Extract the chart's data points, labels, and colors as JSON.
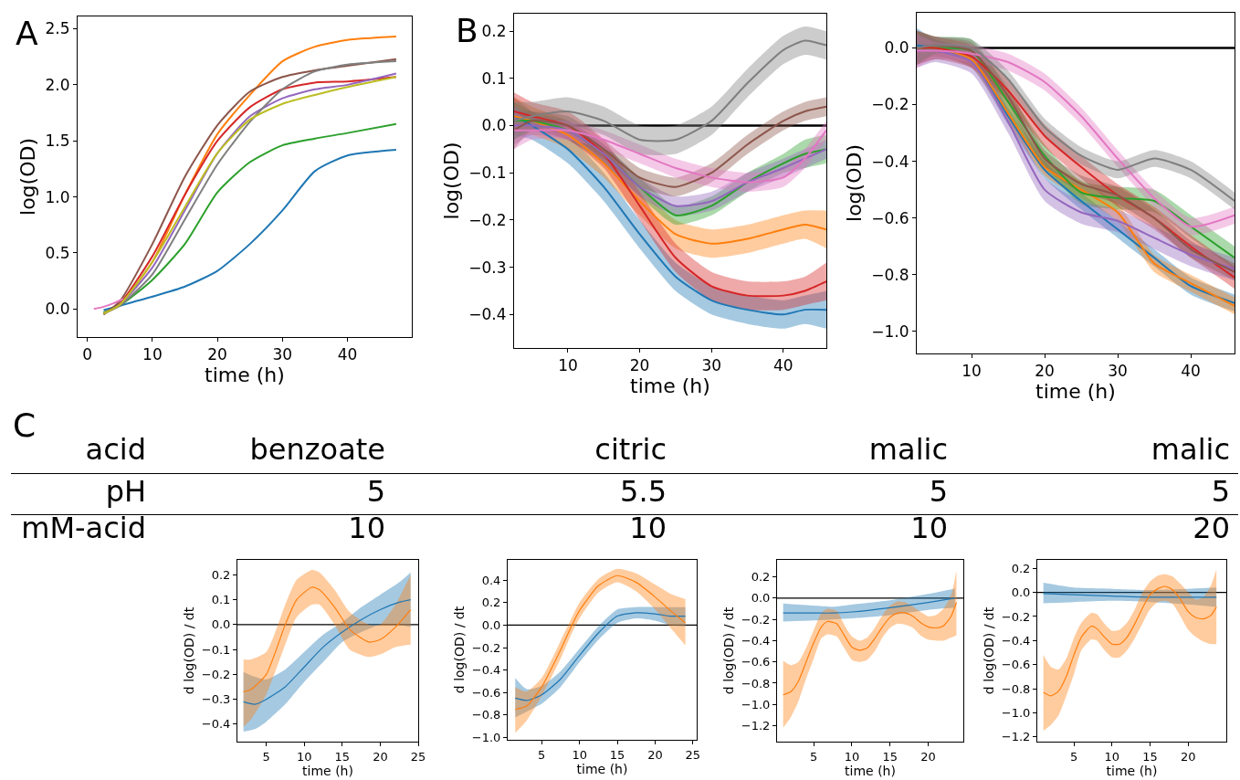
{
  "chart_data": [
    {
      "type": "line",
      "xlabel": "time (h)",
      "ylabel": "log(OD)",
      "annotations": [
        "A"
      ],
      "grid": false,
      "marker": "none",
      "line_style": "solid",
      "x": [
        2.5,
        5,
        10,
        15,
        20,
        25,
        30,
        35,
        40,
        47.5
      ],
      "xlim": [
        -1.5,
        49.9
      ],
      "xticks": [
        0,
        10,
        20,
        30,
        40
      ],
      "ylim": [
        -0.25,
        2.61
      ],
      "yticks": [
        {
          "value": 0,
          "label": "0.0"
        },
        {
          "value": 0.5,
          "label": "0.5"
        },
        {
          "value": 1,
          "label": "1.0"
        },
        {
          "value": 1.5,
          "label": "1.5"
        },
        {
          "value": 2,
          "label": "2.0"
        },
        {
          "value": 2.5,
          "label": "2.5"
        }
      ],
      "series": [
        {
          "color": "#1f77b4",
          "values": [
            -0.01,
            0.03,
            0.11,
            0.2,
            0.34,
            0.58,
            0.88,
            1.23,
            1.37,
            1.42
          ]
        },
        {
          "color": "#ff7f0e",
          "values": [
            -0.04,
            0.04,
            0.42,
            1.02,
            1.56,
            1.91,
            2.21,
            2.34,
            2.4,
            2.43
          ]
        },
        {
          "color": "#2ca02c",
          "values": [
            -0.03,
            0.03,
            0.26,
            0.58,
            1.04,
            1.31,
            1.46,
            1.52,
            1.57,
            1.65
          ]
        },
        {
          "color": "#d62728",
          "values": [
            -0.04,
            0.05,
            0.47,
            1.02,
            1.5,
            1.8,
            1.96,
            2.02,
            2.03,
            2.07
          ]
        },
        {
          "color": "#9467bd",
          "values": [
            -0.04,
            0.04,
            0.37,
            0.88,
            1.39,
            1.72,
            1.88,
            1.96,
            2.0,
            2.1
          ]
        },
        {
          "color": "#8c564b",
          "values": [
            -0.05,
            0.07,
            0.58,
            1.18,
            1.64,
            1.94,
            2.07,
            2.13,
            2.17,
            2.23
          ]
        },
        {
          "color": "#e377c2",
          "x": [
            1,
            2.5,
            4,
            5.5
          ],
          "values": [
            0.0,
            0.02,
            0.05,
            0.09
          ]
        },
        {
          "color": "#7f7f7f",
          "values": [
            -0.04,
            0.03,
            0.31,
            0.8,
            1.29,
            1.67,
            1.96,
            2.12,
            2.18,
            2.21
          ]
        },
        {
          "color": "#bcbd22",
          "values": [
            -0.04,
            0.04,
            0.42,
            0.91,
            1.39,
            1.69,
            1.83,
            1.91,
            1.98,
            2.07
          ]
        }
      ]
    },
    {
      "type": "line",
      "xlabel": "time (h)",
      "ylabel": "log(OD)",
      "annotations": [
        "B"
      ],
      "grid": false,
      "marker": "none",
      "line_style": "solid",
      "x": [
        2.5,
        5,
        10,
        15,
        20,
        25,
        30,
        35,
        40,
        43,
        46
      ],
      "xlim": [
        2.5,
        46
      ],
      "xticks": [
        10,
        20,
        30,
        40
      ],
      "ylim": [
        -0.471,
        0.237
      ],
      "yticks": [
        {
          "value": -0.4,
          "label": "−0.4"
        },
        {
          "value": -0.3,
          "label": "−0.3"
        },
        {
          "value": -0.2,
          "label": "−0.2"
        },
        {
          "value": -0.1,
          "label": "−0.1"
        },
        {
          "value": 0,
          "label": "0.0"
        },
        {
          "value": 0.1,
          "label": "0.1"
        },
        {
          "value": 0.2,
          "label": "0.2"
        }
      ],
      "ref_lines": [
        {
          "axis": "y",
          "value": 0,
          "color": "#000000"
        }
      ],
      "series": [
        {
          "color": "#1f77b4",
          "values": [
            0.02,
            0.0,
            -0.05,
            -0.13,
            -0.23,
            -0.32,
            -0.37,
            -0.39,
            -0.4,
            -0.39,
            -0.39
          ],
          "lower": [
            -0.02,
            -0.03,
            -0.08,
            -0.16,
            -0.26,
            -0.35,
            -0.4,
            -0.42,
            -0.43,
            -0.42,
            -0.43
          ],
          "upper": [
            0.06,
            0.03,
            -0.02,
            -0.1,
            -0.2,
            -0.29,
            -0.34,
            -0.36,
            -0.37,
            -0.36,
            -0.35
          ]
        },
        {
          "color": "#ff7f0e",
          "values": [
            0.02,
            0.01,
            -0.02,
            -0.08,
            -0.16,
            -0.23,
            -0.25,
            -0.24,
            -0.22,
            -0.21,
            -0.22
          ],
          "lower": [
            -0.02,
            -0.02,
            -0.05,
            -0.11,
            -0.19,
            -0.26,
            -0.28,
            -0.27,
            -0.25,
            -0.24,
            -0.26
          ],
          "upper": [
            0.06,
            0.04,
            0.01,
            -0.05,
            -0.13,
            -0.2,
            -0.22,
            -0.21,
            -0.19,
            -0.18,
            -0.18
          ]
        },
        {
          "color": "#2ca02c",
          "values": [
            0.01,
            0.01,
            -0.01,
            -0.06,
            -0.13,
            -0.19,
            -0.17,
            -0.12,
            -0.08,
            -0.06,
            -0.05
          ],
          "lower": [
            -0.03,
            -0.01,
            -0.03,
            -0.08,
            -0.15,
            -0.21,
            -0.19,
            -0.14,
            -0.1,
            -0.09,
            -0.08
          ],
          "upper": [
            0.05,
            0.03,
            0.01,
            -0.04,
            -0.11,
            -0.17,
            -0.15,
            -0.1,
            -0.06,
            -0.03,
            -0.02
          ]
        },
        {
          "color": "#d62728",
          "values": [
            0.03,
            0.02,
            0.0,
            -0.06,
            -0.17,
            -0.28,
            -0.34,
            -0.36,
            -0.36,
            -0.35,
            -0.33
          ],
          "lower": [
            -0.01,
            -0.01,
            -0.03,
            -0.09,
            -0.2,
            -0.31,
            -0.37,
            -0.39,
            -0.39,
            -0.38,
            -0.37
          ],
          "upper": [
            0.07,
            0.05,
            0.03,
            -0.03,
            -0.14,
            -0.25,
            -0.31,
            -0.33,
            -0.33,
            -0.32,
            -0.29
          ]
        },
        {
          "color": "#9467bd",
          "values": [
            0.0,
            0.0,
            -0.01,
            -0.06,
            -0.13,
            -0.17,
            -0.16,
            -0.12,
            -0.09,
            -0.07,
            -0.05
          ],
          "lower": [
            -0.04,
            -0.02,
            -0.03,
            -0.08,
            -0.15,
            -0.19,
            -0.18,
            -0.14,
            -0.11,
            -0.09,
            -0.07
          ],
          "upper": [
            0.04,
            0.02,
            0.01,
            -0.04,
            -0.11,
            -0.15,
            -0.14,
            -0.1,
            -0.07,
            -0.05,
            -0.03
          ]
        },
        {
          "color": "#8c564b",
          "values": [
            -0.01,
            0.01,
            0.0,
            -0.05,
            -0.11,
            -0.13,
            -0.1,
            -0.04,
            0.01,
            0.03,
            0.04
          ],
          "lower": [
            -0.05,
            -0.01,
            -0.02,
            -0.07,
            -0.13,
            -0.15,
            -0.12,
            -0.06,
            -0.01,
            0.01,
            0.02
          ],
          "upper": [
            0.03,
            0.03,
            0.02,
            -0.03,
            -0.09,
            -0.11,
            -0.08,
            -0.02,
            0.03,
            0.05,
            0.06
          ]
        },
        {
          "color": "#e377c2",
          "values": [
            -0.01,
            -0.01,
            -0.01,
            -0.03,
            -0.06,
            -0.09,
            -0.11,
            -0.12,
            -0.11,
            -0.07,
            -0.01
          ],
          "lower": [
            -0.05,
            -0.03,
            -0.03,
            -0.05,
            -0.08,
            -0.11,
            -0.13,
            -0.14,
            -0.13,
            -0.09,
            -0.03
          ],
          "upper": [
            0.03,
            0.01,
            0.01,
            -0.01,
            -0.04,
            -0.07,
            -0.09,
            -0.1,
            -0.09,
            -0.05,
            0.01
          ]
        },
        {
          "color": "#7f7f7f",
          "values": [
            0.01,
            0.02,
            0.03,
            0.01,
            -0.03,
            -0.03,
            0.01,
            0.09,
            0.16,
            0.18,
            0.17
          ],
          "lower": [
            -0.03,
            -0.01,
            0.0,
            -0.02,
            -0.06,
            -0.06,
            -0.02,
            0.06,
            0.13,
            0.15,
            0.14
          ],
          "upper": [
            0.05,
            0.05,
            0.06,
            0.04,
            0.0,
            0.0,
            0.04,
            0.12,
            0.19,
            0.21,
            0.2
          ]
        }
      ]
    },
    {
      "type": "line",
      "xlabel": "time (h)",
      "ylabel": "log(OD)",
      "grid": false,
      "marker": "none",
      "line_style": "solid",
      "x": [
        2.5,
        5,
        10,
        15,
        20,
        25,
        30,
        35,
        40,
        46
      ],
      "xlim": [
        2.5,
        46
      ],
      "xticks": [
        10,
        20,
        30,
        40
      ],
      "ylim": [
        -1.078,
        0.124
      ],
      "yticks": [
        {
          "value": -1,
          "label": "−1.0"
        },
        {
          "value": -0.8,
          "label": "−0.8"
        },
        {
          "value": -0.6,
          "label": "−0.6"
        },
        {
          "value": -0.4,
          "label": "−0.4"
        },
        {
          "value": -0.2,
          "label": "−0.2"
        },
        {
          "value": 0,
          "label": "0.0"
        }
      ],
      "ref_lines": [
        {
          "axis": "y",
          "value": 0,
          "color": "#000000"
        }
      ],
      "series": [
        {
          "color": "#1f77b4",
          "values": [
            0.01,
            0.0,
            -0.04,
            -0.24,
            -0.43,
            -0.54,
            -0.64,
            -0.74,
            -0.84,
            -0.9
          ],
          "lower": [
            -0.05,
            -0.03,
            -0.07,
            -0.27,
            -0.46,
            -0.57,
            -0.67,
            -0.77,
            -0.87,
            -0.93
          ],
          "upper": [
            0.07,
            0.03,
            -0.01,
            -0.21,
            -0.4,
            -0.51,
            -0.61,
            -0.71,
            -0.81,
            -0.87
          ]
        },
        {
          "color": "#ff7f0e",
          "values": [
            0.0,
            0.0,
            -0.04,
            -0.23,
            -0.42,
            -0.5,
            -0.58,
            -0.76,
            -0.83,
            -0.91
          ],
          "lower": [
            -0.06,
            -0.03,
            -0.07,
            -0.26,
            -0.45,
            -0.53,
            -0.61,
            -0.79,
            -0.86,
            -0.94
          ],
          "upper": [
            0.06,
            0.03,
            -0.01,
            -0.2,
            -0.39,
            -0.47,
            -0.55,
            -0.73,
            -0.8,
            -0.88
          ]
        },
        {
          "color": "#2ca02c",
          "values": [
            0.0,
            0.0,
            -0.01,
            -0.19,
            -0.38,
            -0.51,
            -0.53,
            -0.54,
            -0.63,
            -0.74
          ],
          "lower": [
            -0.06,
            -0.04,
            -0.05,
            -0.23,
            -0.42,
            -0.55,
            -0.57,
            -0.58,
            -0.67,
            -0.78
          ],
          "upper": [
            0.06,
            0.04,
            0.03,
            -0.15,
            -0.34,
            -0.47,
            -0.49,
            -0.5,
            -0.59,
            -0.7
          ]
        },
        {
          "color": "#d62728",
          "values": [
            0.0,
            0.0,
            -0.03,
            -0.15,
            -0.31,
            -0.42,
            -0.52,
            -0.6,
            -0.7,
            -0.81
          ],
          "lower": [
            -0.06,
            -0.04,
            -0.07,
            -0.19,
            -0.35,
            -0.46,
            -0.56,
            -0.64,
            -0.74,
            -0.85
          ],
          "upper": [
            0.06,
            0.04,
            0.01,
            -0.11,
            -0.27,
            -0.38,
            -0.48,
            -0.56,
            -0.66,
            -0.77
          ]
        },
        {
          "color": "#9467bd",
          "values": [
            -0.01,
            -0.01,
            -0.05,
            -0.26,
            -0.5,
            -0.58,
            -0.61,
            -0.67,
            -0.73,
            -0.78
          ],
          "lower": [
            -0.07,
            -0.05,
            -0.09,
            -0.3,
            -0.54,
            -0.62,
            -0.65,
            -0.71,
            -0.77,
            -0.82
          ],
          "upper": [
            0.05,
            0.03,
            -0.01,
            -0.22,
            -0.46,
            -0.54,
            -0.57,
            -0.63,
            -0.69,
            -0.74
          ]
        },
        {
          "color": "#8c564b",
          "values": [
            0.0,
            0.01,
            -0.01,
            -0.17,
            -0.39,
            -0.48,
            -0.52,
            -0.6,
            -0.71,
            -0.79
          ],
          "lower": [
            -0.06,
            -0.02,
            -0.04,
            -0.2,
            -0.42,
            -0.51,
            -0.55,
            -0.63,
            -0.74,
            -0.82
          ],
          "upper": [
            0.06,
            0.04,
            0.02,
            -0.14,
            -0.36,
            -0.45,
            -0.49,
            -0.57,
            -0.68,
            -0.76
          ]
        },
        {
          "color": "#e377c2",
          "values": [
            -0.01,
            -0.01,
            -0.02,
            -0.05,
            -0.12,
            -0.24,
            -0.39,
            -0.53,
            -0.63,
            -0.59
          ],
          "lower": [
            -0.07,
            -0.04,
            -0.05,
            -0.08,
            -0.15,
            -0.27,
            -0.42,
            -0.56,
            -0.66,
            -0.62
          ],
          "upper": [
            0.05,
            0.02,
            0.01,
            -0.02,
            -0.09,
            -0.21,
            -0.36,
            -0.5,
            -0.6,
            -0.56
          ]
        },
        {
          "color": "#7f7f7f",
          "values": [
            0.0,
            0.01,
            0.0,
            -0.11,
            -0.28,
            -0.38,
            -0.43,
            -0.39,
            -0.43,
            -0.54
          ],
          "lower": [
            -0.06,
            -0.02,
            -0.03,
            -0.14,
            -0.31,
            -0.41,
            -0.46,
            -0.42,
            -0.46,
            -0.57
          ],
          "upper": [
            0.06,
            0.04,
            0.03,
            -0.08,
            -0.25,
            -0.35,
            -0.4,
            -0.36,
            -0.4,
            -0.51
          ]
        }
      ]
    },
    {
      "type": "other",
      "annotations": [
        "C",
        "acid",
        "benzoate",
        "citric",
        "malic",
        "malic",
        "pH",
        "5",
        "5.5",
        "5",
        "5",
        "mM-acid",
        "10",
        "10",
        "10",
        "20"
      ]
    },
    {
      "type": "line",
      "xlabel": "time (h)",
      "ylabel": "d log(OD) / dt",
      "grid": false,
      "marker": "none",
      "line_style": "solid",
      "xlim": [
        1.2,
        25
      ],
      "xticks": [
        5,
        10,
        15,
        20,
        25
      ],
      "ylim": [
        -0.47,
        0.26
      ],
      "yticks": [
        {
          "value": -0.4,
          "label": "−0.4"
        },
        {
          "value": -0.3,
          "label": "−0.3"
        },
        {
          "value": -0.2,
          "label": "−0.2"
        },
        {
          "value": -0.1,
          "label": "−0.1"
        },
        {
          "value": 0,
          "label": "0.0"
        },
        {
          "value": 0.1,
          "label": "0.1"
        },
        {
          "value": 0.2,
          "label": "0.2"
        }
      ],
      "ref_lines": [
        {
          "axis": "y",
          "value": 0,
          "color": "#000000"
        }
      ],
      "series": [
        {
          "color": "#1f77b4",
          "x": [
            2,
            3.5,
            5,
            7.5,
            10,
            12.5,
            15,
            17.5,
            20,
            22.5,
            24
          ],
          "values": [
            -0.31,
            -0.32,
            -0.3,
            -0.25,
            -0.17,
            -0.09,
            -0.03,
            0.02,
            0.06,
            0.09,
            0.1
          ],
          "lower": [
            -0.43,
            -0.42,
            -0.39,
            -0.32,
            -0.23,
            -0.15,
            -0.07,
            -0.03,
            0.0,
            0.0,
            -0.01
          ],
          "upper": [
            -0.19,
            -0.21,
            -0.22,
            -0.18,
            -0.11,
            -0.04,
            0.01,
            0.07,
            0.12,
            0.17,
            0.21
          ]
        },
        {
          "color": "#ff7f0e",
          "x": [
            2,
            3,
            5,
            7.5,
            9,
            11,
            12,
            14,
            16,
            18.5,
            20,
            22,
            24
          ],
          "values": [
            -0.27,
            -0.26,
            -0.2,
            0.0,
            0.1,
            0.15,
            0.14,
            0.07,
            -0.02,
            -0.07,
            -0.06,
            -0.01,
            0.06
          ],
          "lower": [
            -0.41,
            -0.38,
            -0.28,
            -0.08,
            0.03,
            0.08,
            0.08,
            0.0,
            -0.1,
            -0.13,
            -0.12,
            -0.09,
            -0.08
          ],
          "upper": [
            -0.14,
            -0.14,
            -0.11,
            0.08,
            0.18,
            0.22,
            0.21,
            0.14,
            0.05,
            0.0,
            0.0,
            0.08,
            0.2
          ]
        }
      ]
    },
    {
      "type": "line",
      "xlabel": "time (h)",
      "ylabel": "d log(OD) / dt",
      "grid": false,
      "marker": "none",
      "line_style": "solid",
      "xlim": [
        0.5,
        25.5
      ],
      "xticks": [
        5,
        10,
        15,
        20,
        25
      ],
      "ylim": [
        -1.02,
        0.58
      ],
      "yticks": [
        {
          "value": -1,
          "label": "−1.0"
        },
        {
          "value": -0.8,
          "label": "−0.8"
        },
        {
          "value": -0.6,
          "label": "−0.6"
        },
        {
          "value": -0.4,
          "label": "−0.4"
        },
        {
          "value": -0.2,
          "label": "−0.2"
        },
        {
          "value": 0,
          "label": "0.0"
        },
        {
          "value": 0.2,
          "label": "0.2"
        },
        {
          "value": 0.4,
          "label": "0.4"
        }
      ],
      "ref_lines": [
        {
          "axis": "y",
          "value": 0,
          "color": "#000000"
        }
      ],
      "series": [
        {
          "color": "#1f77b4",
          "x": [
            1.5,
            3,
            5,
            7.5,
            10,
            12.5,
            15,
            17.5,
            20,
            22,
            24
          ],
          "values": [
            -0.65,
            -0.67,
            -0.62,
            -0.48,
            -0.27,
            -0.07,
            0.08,
            0.11,
            0.1,
            0.08,
            0.08
          ],
          "lower": [
            -0.82,
            -0.77,
            -0.7,
            -0.55,
            -0.33,
            -0.13,
            0.02,
            0.06,
            0.04,
            0.0,
            -0.01
          ],
          "upper": [
            -0.47,
            -0.57,
            -0.54,
            -0.41,
            -0.21,
            -0.01,
            0.14,
            0.16,
            0.16,
            0.16,
            0.16
          ]
        },
        {
          "color": "#ff7f0e",
          "x": [
            1.5,
            3,
            5,
            7.5,
            9,
            10,
            12.5,
            15,
            17.5,
            20,
            22,
            24
          ],
          "values": [
            -0.75,
            -0.72,
            -0.55,
            -0.22,
            0.0,
            0.13,
            0.35,
            0.44,
            0.38,
            0.25,
            0.13,
            0.02
          ],
          "lower": [
            -0.96,
            -0.85,
            -0.63,
            -0.3,
            -0.07,
            0.06,
            0.29,
            0.38,
            0.3,
            0.14,
            -0.02,
            -0.18
          ],
          "upper": [
            -0.55,
            -0.59,
            -0.47,
            -0.14,
            0.07,
            0.2,
            0.41,
            0.5,
            0.46,
            0.36,
            0.28,
            0.23
          ]
        }
      ]
    },
    {
      "type": "line",
      "xlabel": "time (h)",
      "ylabel": "d log(OD) / dt",
      "grid": false,
      "marker": "none",
      "line_style": "solid",
      "xlim": [
        0.2,
        24.6
      ],
      "xticks": [
        5,
        10,
        15,
        20
      ],
      "ylim": [
        -1.35,
        0.36
      ],
      "yticks": [
        {
          "value": -1.2,
          "label": "−1.2"
        },
        {
          "value": -1,
          "label": "−1.0"
        },
        {
          "value": -0.8,
          "label": "−0.8"
        },
        {
          "value": -0.6,
          "label": "−0.6"
        },
        {
          "value": -0.4,
          "label": "−0.4"
        },
        {
          "value": -0.2,
          "label": "−0.2"
        },
        {
          "value": 0,
          "label": "0.0"
        },
        {
          "value": 0.2,
          "label": "0.2"
        }
      ],
      "ref_lines": [
        {
          "axis": "y",
          "value": 0,
          "color": "#000000"
        }
      ],
      "series": [
        {
          "color": "#1f77b4",
          "x": [
            1,
            5,
            7.5,
            10,
            15,
            20,
            23.5
          ],
          "values": [
            -0.14,
            -0.14,
            -0.14,
            -0.13,
            -0.09,
            -0.04,
            0.0
          ],
          "lower": [
            -0.22,
            -0.21,
            -0.2,
            -0.19,
            -0.16,
            -0.11,
            -0.09
          ],
          "upper": [
            -0.05,
            -0.07,
            -0.08,
            -0.06,
            -0.02,
            0.04,
            0.09
          ]
        },
        {
          "color": "#ff7f0e",
          "x": [
            1,
            2,
            3,
            4,
            5,
            6,
            6.8,
            8,
            9,
            10,
            11,
            12,
            13,
            14,
            15,
            16,
            17,
            18,
            19,
            20,
            21,
            22,
            23,
            23.7
          ],
          "values": [
            -0.91,
            -0.88,
            -0.78,
            -0.6,
            -0.42,
            -0.27,
            -0.22,
            -0.24,
            -0.35,
            -0.46,
            -0.49,
            -0.47,
            -0.38,
            -0.27,
            -0.18,
            -0.14,
            -0.14,
            -0.17,
            -0.23,
            -0.27,
            -0.28,
            -0.26,
            -0.17,
            -0.04
          ],
          "lower": [
            -1.22,
            -1.12,
            -0.97,
            -0.76,
            -0.57,
            -0.38,
            -0.34,
            -0.36,
            -0.47,
            -0.58,
            -0.6,
            -0.58,
            -0.5,
            -0.37,
            -0.28,
            -0.24,
            -0.25,
            -0.28,
            -0.35,
            -0.39,
            -0.4,
            -0.4,
            -0.37,
            -0.35
          ],
          "upper": [
            -0.59,
            -0.63,
            -0.6,
            -0.47,
            -0.3,
            -0.14,
            -0.1,
            -0.12,
            -0.25,
            -0.36,
            -0.4,
            -0.37,
            -0.28,
            -0.16,
            -0.07,
            -0.03,
            -0.04,
            -0.08,
            -0.13,
            -0.17,
            -0.16,
            -0.1,
            0.03,
            0.26
          ]
        }
      ]
    },
    {
      "type": "line",
      "xlabel": "time (h)",
      "ylabel": "d log(OD) / dt",
      "grid": false,
      "marker": "none",
      "line_style": "solid",
      "xlim": [
        0.2,
        25
      ],
      "xticks": [
        5,
        10,
        15,
        20
      ],
      "ylim": [
        -1.24,
        0.27
      ],
      "yticks": [
        {
          "value": -1.2,
          "label": "−1.2"
        },
        {
          "value": -1,
          "label": "−1.0"
        },
        {
          "value": -0.8,
          "label": "−0.8"
        },
        {
          "value": -0.6,
          "label": "−0.6"
        },
        {
          "value": -0.4,
          "label": "−0.4"
        },
        {
          "value": -0.2,
          "label": "−0.2"
        },
        {
          "value": 0,
          "label": "0.0"
        },
        {
          "value": 0.2,
          "label": "0.2"
        }
      ],
      "ref_lines": [
        {
          "axis": "y",
          "value": 0,
          "color": "#000000"
        }
      ],
      "series": [
        {
          "color": "#1f77b4",
          "x": [
            1,
            5,
            10,
            15,
            20,
            23.7
          ],
          "values": [
            -0.01,
            -0.02,
            -0.03,
            -0.04,
            -0.04,
            -0.04
          ],
          "lower": [
            -0.09,
            -0.08,
            -0.07,
            -0.08,
            -0.1,
            -0.12
          ],
          "upper": [
            0.08,
            0.04,
            0.03,
            0.02,
            0.03,
            0.04
          ]
        },
        {
          "color": "#ff7f0e",
          "x": [
            1,
            2,
            3,
            4,
            5,
            6,
            7.3,
            8,
            9,
            10,
            11,
            12,
            13,
            14,
            15,
            16,
            17,
            18,
            19,
            20,
            21,
            22,
            23,
            23.7
          ],
          "values": [
            -0.83,
            -0.86,
            -0.82,
            -0.7,
            -0.52,
            -0.37,
            -0.28,
            -0.3,
            -0.37,
            -0.43,
            -0.43,
            -0.37,
            -0.26,
            -0.13,
            -0.02,
            0.03,
            0.05,
            0.02,
            -0.06,
            -0.16,
            -0.21,
            -0.22,
            -0.19,
            -0.12
          ],
          "lower": [
            -1.15,
            -1.1,
            -1.02,
            -0.86,
            -0.68,
            -0.48,
            -0.39,
            -0.4,
            -0.48,
            -0.54,
            -0.54,
            -0.48,
            -0.38,
            -0.26,
            -0.14,
            -0.08,
            -0.07,
            -0.1,
            -0.2,
            -0.31,
            -0.37,
            -0.41,
            -0.43,
            -0.43
          ],
          "upper": [
            -0.52,
            -0.62,
            -0.64,
            -0.55,
            -0.38,
            -0.25,
            -0.17,
            -0.18,
            -0.26,
            -0.32,
            -0.31,
            -0.25,
            -0.14,
            0.0,
            0.09,
            0.14,
            0.15,
            0.13,
            0.07,
            0.0,
            -0.06,
            -0.04,
            0.06,
            0.19
          ]
        }
      ]
    }
  ]
}
